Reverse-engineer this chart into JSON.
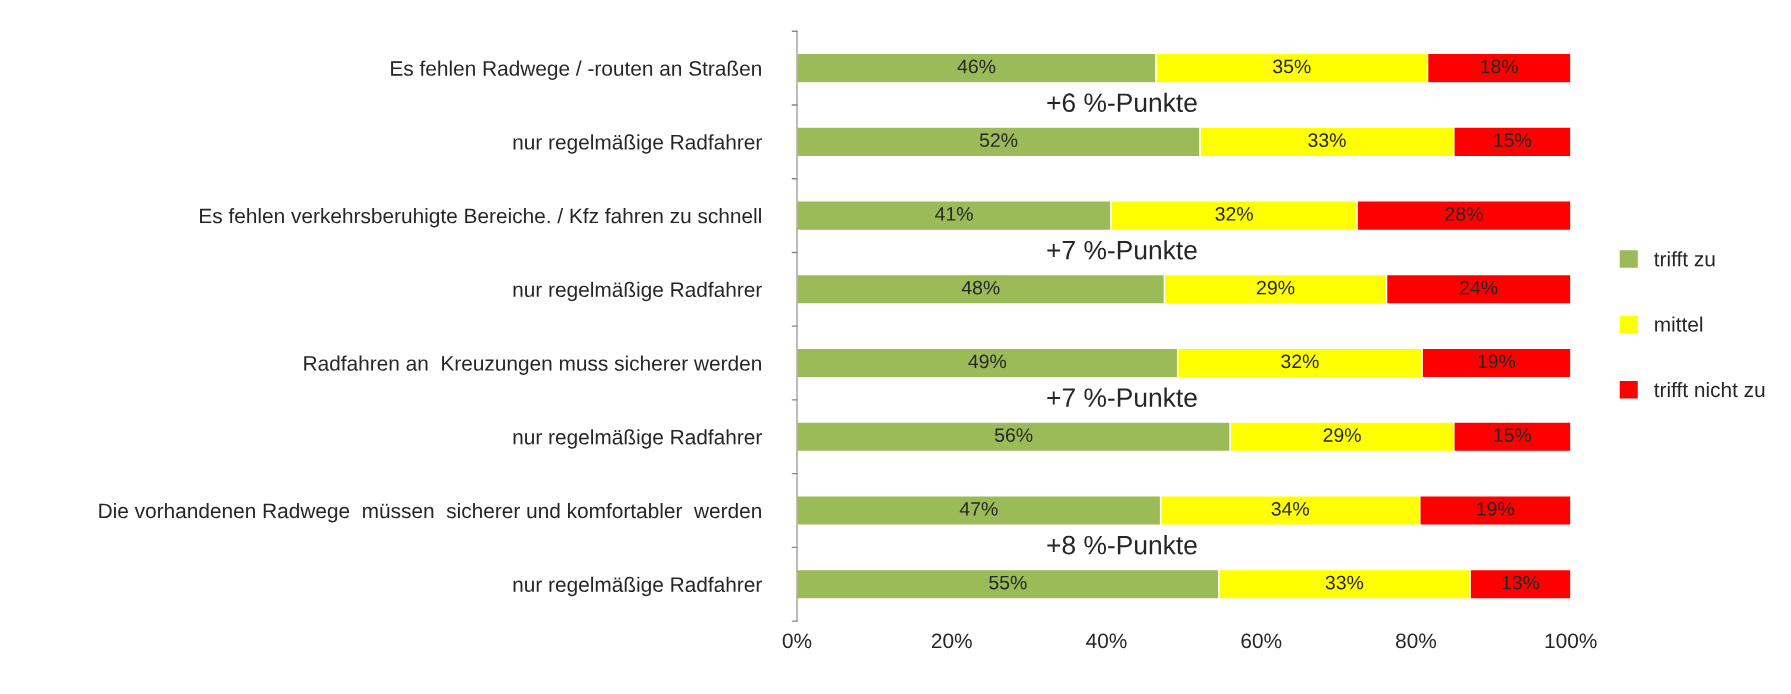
{
  "chart_data": {
    "type": "bar",
    "orientation": "horizontal",
    "stacked": true,
    "categories": [
      "Es fehlen Radwege / -routen an Straßen",
      "nur regelmäßige Radfahrer",
      "Es fehlen verkehrsberuhigte Bereiche. / Kfz fahren zu schnell",
      "nur regelmäßige Radfahrer",
      "Radfahren an  Kreuzungen muss sicherer werden",
      "nur regelmäßige Radfahrer",
      "Die vorhandenen Radwege  müssen  sicherer und komfortabler  werden",
      "nur regelmäßige Radfahrer"
    ],
    "series": [
      {
        "name": "trifft zu",
        "color": "#9bbb59",
        "values": [
          46.4,
          52.1,
          40.6,
          47.5,
          49.2,
          56.0,
          47.0,
          54.5
        ],
        "value_labels": [
          "46%",
          "52%",
          "41%",
          "48%",
          "49%",
          "56%",
          "47%",
          "55%"
        ]
      },
      {
        "name": "mittel",
        "color": "#ffff00",
        "values": [
          35.1,
          32.8,
          31.8,
          28.7,
          31.6,
          28.9,
          33.5,
          32.5
        ],
        "value_labels": [
          "35%",
          "33%",
          "32%",
          "29%",
          "32%",
          "29%",
          "34%",
          "33%"
        ]
      },
      {
        "name": "trifft nicht zu",
        "color": "#ff0000",
        "values": [
          18.5,
          15.1,
          27.6,
          23.8,
          19.2,
          15.1,
          19.5,
          13.0
        ],
        "value_labels": [
          "18%",
          "15%",
          "28%",
          "24%",
          "19%",
          "15%",
          "19%",
          "13%"
        ]
      }
    ],
    "xlim": [
      0,
      100
    ],
    "xticks": [
      {
        "value": 0,
        "label": "0%"
      },
      {
        "value": 20,
        "label": "20%"
      },
      {
        "value": 40,
        "label": "40%"
      },
      {
        "value": 60,
        "label": "60%"
      },
      {
        "value": 80,
        "label": "80%"
      },
      {
        "value": 100,
        "label": "100%"
      }
    ],
    "annotations": [
      "+6 %-Punkte",
      "+7 %-Punkte",
      "+7 %-Punkte",
      "+8 %-Punkte"
    ],
    "legend": "right",
    "grid": false
  }
}
